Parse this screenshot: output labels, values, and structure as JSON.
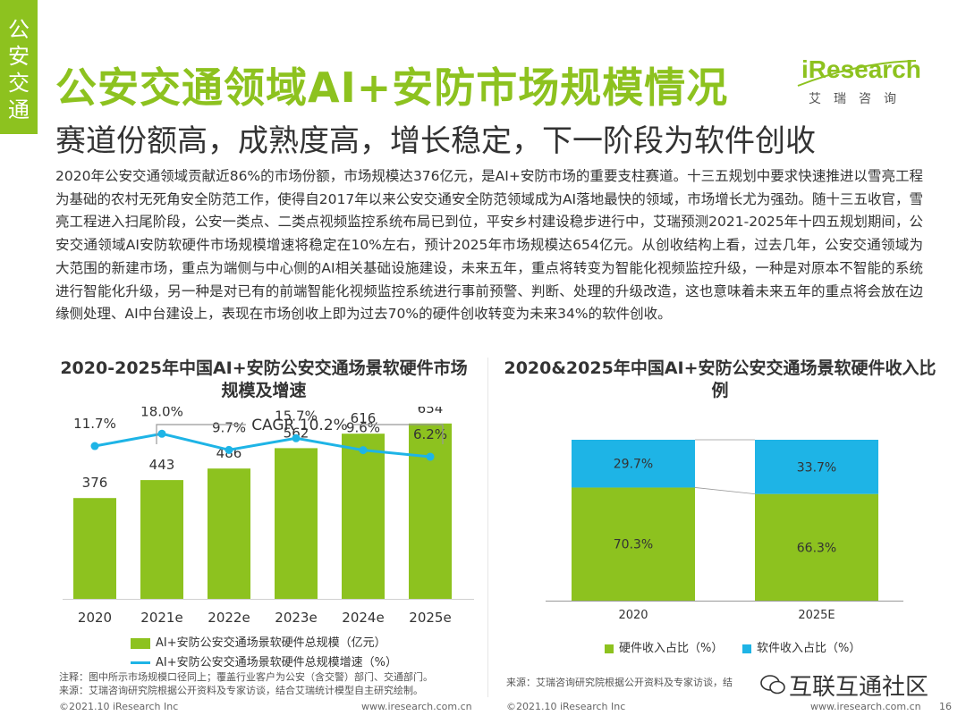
{
  "side_tab": "公安交通",
  "header": {
    "title": "公安交通领域AI+安防市场规模情况",
    "subtitle": "赛道份额高，成熟度高，增长稳定，下一阶段为软件创收",
    "logo_main": "iResearch",
    "logo_sub": "艾瑞咨询"
  },
  "body_text": "2020年公安交通领域贡献近86%的市场份额，市场规模达376亿元，是AI+安防市场的重要支柱赛道。十三五规划中要求快速推进以雪亮工程为基础的农村无死角安全防范工作，使得自2017年以来公安交通安全防范领域成为AI落地最快的领域，市场增长尤为强劲。随十三五收官，雪亮工程进入扫尾阶段，公安一类点、二类点视频监控系统布局已到位，平安乡村建设稳步进行中，艾瑞预测2021-2025年十四五规划期间，公安交通领域AI安防软硬件市场规模增速将稳定在10%左右，预计2025年市场规模达654亿元。从创收结构上看，过去几年，公安交通领域为大范围的新建市场，重点为端侧与中心侧的AI相关基础设施建设，未来五年，重点将转变为智能化视频监控升级，一种是对原本不智能的系统进行智能化升级，另一种是对已有的前端智能化视频监控系统进行事前预警、判断、处理的升级改造，这也意味着未来五年的重点将会放在边缘侧处理、AI中台建设上，表现在市场创收上即为过去70%的硬件创收转变为未来34%的软件创收。",
  "chart_data": [
    {
      "type": "bar",
      "title": "2020-2025年中国AI+安防公安交通场景软硬件市场规模及增速",
      "categories": [
        "2020",
        "2021e",
        "2022e",
        "2023e",
        "2024e",
        "2025e"
      ],
      "series": [
        {
          "name": "AI+安防公安交通场景软硬件总规模（亿元）",
          "kind": "bar",
          "values": [
            376,
            443,
            486,
            562,
            616,
            654
          ],
          "labels": [
            "376",
            "443",
            "486",
            "562",
            "616",
            "654"
          ]
        },
        {
          "name": "AI+安防公安交通场景软硬件总规模增速（%）",
          "kind": "line",
          "values": [
            11.7,
            18.0,
            9.7,
            15.7,
            9.6,
            6.2
          ],
          "labels": [
            "11.7%",
            "18.0%",
            "9.7%",
            "15.7%",
            "9.6%",
            "6.2%"
          ]
        }
      ],
      "annotation": "CAGR 10.2%",
      "bar_ylim": [
        0,
        1000
      ],
      "line_ylim": [
        -30,
        25
      ],
      "grid": false,
      "legend": "bottom",
      "colors": {
        "bar": "#8DC21F",
        "line": "#1EB4E6"
      }
    },
    {
      "type": "bar",
      "stacked": true,
      "percent": true,
      "title": "2020&2025年中国AI+安防公安交通场景软硬件收入比例",
      "categories": [
        "2020",
        "2025E"
      ],
      "series": [
        {
          "name": "硬件收入占比（%）",
          "values": [
            70.3,
            66.3
          ],
          "labels": [
            "70.3%",
            "66.3%"
          ],
          "color": "#8DC21F"
        },
        {
          "name": "软件收入占比（%）",
          "values": [
            29.7,
            33.7
          ],
          "labels": [
            "29.7%",
            "33.7%"
          ],
          "color": "#1EB4E6"
        }
      ],
      "ylim": [
        0,
        100
      ],
      "legend": "bottom"
    }
  ],
  "notes": {
    "left_note1": "注释：图中所示市场规模口径同上；覆盖行业客户为公安（含交警）部门、交通部门。",
    "left_note2": "来源：艾瑞咨询研究院根据公开资料及专家访谈，结合艾瑞统计模型自主研究绘制。",
    "right_source": "来源：艾瑞咨询研究院根据公开资料及专家访谈，结"
  },
  "footer": {
    "copyright": "©2021.10 iResearch Inc",
    "url": "www.iresearch.com.cn",
    "page": "16"
  },
  "watermark": "互联互通社区"
}
